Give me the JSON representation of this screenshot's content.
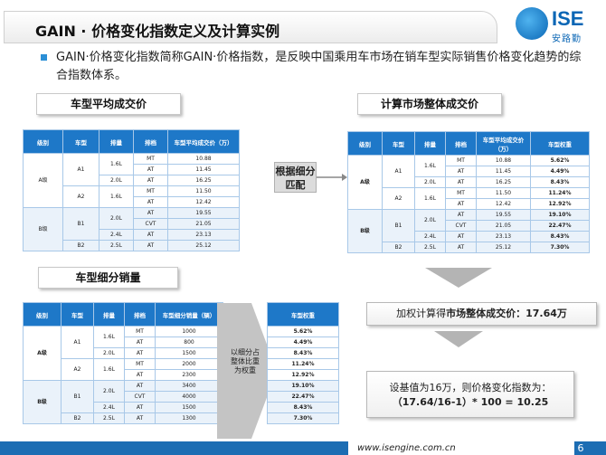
{
  "header": {
    "title": "GAIN · 价格变化指数定义及计算实例",
    "logo_text": "ISE",
    "logo_cn": "安路勤"
  },
  "intro": "GAIN·价格变化指数简称GAIN·价格指数，是反映中国乘用车市场在销车型实际销售价格变化趋势的综合指数体系。",
  "labels": {
    "avg_price": "车型平均成交价",
    "market_price": "计算市场整体成交价",
    "segment_sales": "车型细分销量",
    "match": "根据细分匹配",
    "weight_note": "以细分占整体比重为权重"
  },
  "table_avg": {
    "headers": [
      "级别",
      "车型",
      "排量",
      "排档",
      "车型平均成交价（万）"
    ],
    "rows": [
      [
        "MT",
        "10.88"
      ],
      [
        "AT",
        "11.45"
      ],
      [
        "AT",
        "16.25"
      ],
      [
        "MT",
        "11.50"
      ],
      [
        "AT",
        "12.42"
      ],
      [
        "AT",
        "19.55"
      ],
      [
        "CVT",
        "21.05"
      ],
      [
        "AT",
        "23.13"
      ],
      [
        "AT",
        "25.12"
      ]
    ],
    "levels": [
      "A级",
      "B级"
    ],
    "models": [
      "A1",
      "A2",
      "B1",
      "B2"
    ],
    "displacements": [
      "1.6L",
      "2.0L",
      "1.6L",
      "2.0L",
      "2.4L",
      "2.5L"
    ]
  },
  "table_market": {
    "headers": [
      "级别",
      "车型",
      "排量",
      "排档",
      "车型平均成交价（万）",
      "车型权重"
    ],
    "weights": [
      "5.62%",
      "4.49%",
      "8.43%",
      "11.24%",
      "12.92%",
      "19.10%",
      "22.47%",
      "8.43%",
      "7.30%"
    ]
  },
  "table_sales": {
    "headers": [
      "级别",
      "车型",
      "排量",
      "排档",
      "车型细分销量（辆）",
      "车型权重"
    ],
    "sales": [
      "1000",
      "800",
      "1500",
      "2000",
      "2300",
      "3400",
      "4000",
      "1500",
      "1300"
    ]
  },
  "result1": {
    "prefix": "加权计算得",
    "bold": "市场整体成交价：17.64万"
  },
  "result2": {
    "line1": "设基值为16万，则价格变化指数为：",
    "line2": "（17.64/16-1）* 100 = 10.25"
  },
  "footer": {
    "url": "www.isengine.com.cn",
    "page": "6"
  }
}
